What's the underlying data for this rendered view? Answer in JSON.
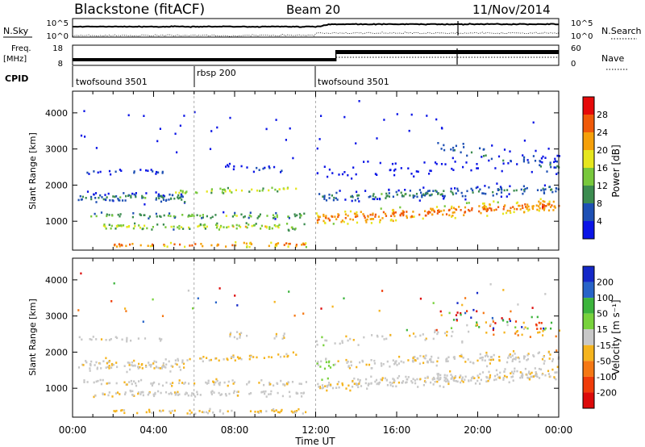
{
  "header": {
    "station": "Blackstone (fitACF)",
    "beam": "Beam 20",
    "date": "11/Nov/2014"
  },
  "summary": {
    "nsky_label": "N.Sky",
    "nsky_ticks": [
      "10^5",
      "10^0"
    ],
    "nsearch_label": "N.Search",
    "nsearch_ticks": [
      "10^5",
      "10^0"
    ],
    "freq_label": "Freq.",
    "freq_unit": "[MHz]",
    "freq_ticks": [
      "18",
      "8"
    ],
    "nave_label": "Nave",
    "nave_ticks": [
      "60",
      "0"
    ],
    "cpid_label": "CPID",
    "cpid_segments": [
      {
        "label": "twofsound 3501",
        "start_hour": 0
      },
      {
        "label": "rbsp 200",
        "start_hour": 6
      },
      {
        "label": "twofsound 3501",
        "start_hour": 12
      }
    ]
  },
  "chart_data": [
    {
      "type": "heatmap",
      "name": "power",
      "x_unit": "hour UT",
      "xlim": [
        0,
        24
      ],
      "xticks": [
        "00:00",
        "04:00",
        "08:00",
        "12:00",
        "16:00",
        "20:00",
        "00:00"
      ],
      "xlabel": "Time UT",
      "ylabel": "Slant Range [km]",
      "ylim": [
        200,
        4600
      ],
      "yticks": [
        1000,
        2000,
        3000,
        4000
      ],
      "colorbar": {
        "label": "Power [dB]",
        "ticks": [
          "4",
          "8",
          "12",
          "16",
          "20",
          "24",
          "28"
        ],
        "colors": [
          "#0a14e6",
          "#1e50b4",
          "#3c8c50",
          "#78c83c",
          "#e6e61e",
          "#f5a00a",
          "#f05a0a",
          "#e60a0a"
        ]
      }
    },
    {
      "type": "heatmap",
      "name": "velocity",
      "x_unit": "hour UT",
      "xlim": [
        0,
        24
      ],
      "xticks": [
        "00:00",
        "04:00",
        "08:00",
        "12:00",
        "16:00",
        "20:00",
        "00:00"
      ],
      "xlabel": "Time UT",
      "ylabel": "Slant Range [km]",
      "ylim": [
        200,
        4600
      ],
      "yticks": [
        1000,
        2000,
        3000,
        4000
      ],
      "colorbar": {
        "label": "Velocity [m s⁻¹]",
        "ticks": [
          "200",
          "100",
          "50",
          "15",
          "-15",
          "-50",
          "-100",
          "-200"
        ],
        "colors": [
          "#1428c8",
          "#2864c8",
          "#3cb43c",
          "#78d23c",
          "#c8c8c8",
          "#f5b41e",
          "#f57814",
          "#f03c0a",
          "#dc0a0a"
        ]
      },
      "bands": [
        {
          "t": [
            0,
            24
          ],
          "range": [
            1100,
            1600
          ],
          "dominant": "-15 to 15"
        },
        {
          "t": [
            6,
            11
          ],
          "range": [
            1700,
            2100
          ],
          "dominant": "-50"
        }
      ]
    }
  ]
}
